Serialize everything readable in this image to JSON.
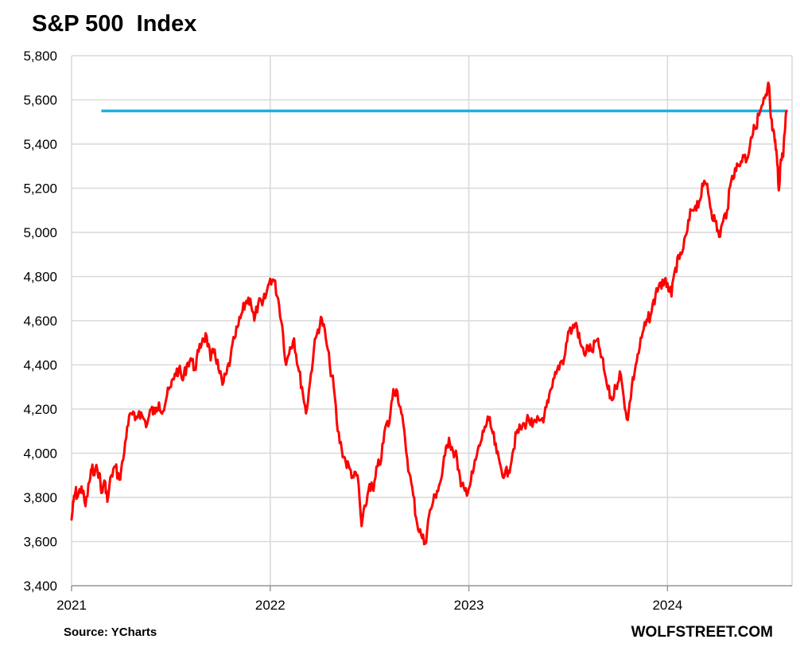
{
  "chart_data": {
    "type": "line",
    "title": "S&P 500  Index",
    "xlabel": "",
    "ylabel": "",
    "source": "Source: YCharts",
    "brand": "WOLFSTREET.COM",
    "xlim": [
      2021.0,
      2024.6
    ],
    "ylim": [
      3400,
      5800
    ],
    "y_ticks": [
      3400,
      3600,
      3800,
      4000,
      4200,
      4400,
      4600,
      4800,
      5000,
      5200,
      5400,
      5600,
      5800
    ],
    "y_tick_labels": [
      "3,400",
      "3,600",
      "3,800",
      "4,000",
      "4,200",
      "4,400",
      "4,600",
      "4,800",
      "5,000",
      "5,200",
      "5,400",
      "5,600",
      "5,800"
    ],
    "x_ticks": [
      2021,
      2022,
      2023,
      2024
    ],
    "x_tick_labels": [
      "2021",
      "2022",
      "2023",
      "2024"
    ],
    "grid": true,
    "legend": "none",
    "colors": {
      "series": "#ff0000",
      "reference": "#1fb0e0",
      "grid": "#d9d9d9"
    },
    "series": [
      {
        "x": [
          2021.0,
          2021.01,
          2021.02,
          2021.03,
          2021.05,
          2021.07,
          2021.09,
          2021.1,
          2021.12,
          2021.14,
          2021.15,
          2021.17,
          2021.18,
          2021.2,
          2021.22,
          2021.24,
          2021.26,
          2021.28,
          2021.3,
          2021.32,
          2021.34,
          2021.36,
          2021.38,
          2021.4,
          2021.42,
          2021.44,
          2021.46,
          2021.48,
          2021.5,
          2021.52,
          2021.54,
          2021.56,
          2021.58,
          2021.6,
          2021.62,
          2021.64,
          2021.66,
          2021.68,
          2021.7,
          2021.72,
          2021.74,
          2021.76,
          2021.78,
          2021.8,
          2021.82,
          2021.84,
          2021.86,
          2021.88,
          2021.9,
          2021.92,
          2021.94,
          2021.96,
          2021.98,
          2022.0,
          2022.02,
          2022.04,
          2022.06,
          2022.08,
          2022.1,
          2022.12,
          2022.14,
          2022.16,
          2022.18,
          2022.2,
          2022.22,
          2022.24,
          2022.26,
          2022.28,
          2022.3,
          2022.32,
          2022.34,
          2022.36,
          2022.38,
          2022.4,
          2022.42,
          2022.44,
          2022.46,
          2022.48,
          2022.5,
          2022.52,
          2022.54,
          2022.56,
          2022.58,
          2022.6,
          2022.62,
          2022.64,
          2022.66,
          2022.68,
          2022.7,
          2022.72,
          2022.74,
          2022.76,
          2022.78,
          2022.8,
          2022.82,
          2022.84,
          2022.86,
          2022.88,
          2022.9,
          2022.92,
          2022.94,
          2022.96,
          2022.98,
          2023.0,
          2023.02,
          2023.04,
          2023.06,
          2023.08,
          2023.1,
          2023.12,
          2023.14,
          2023.16,
          2023.18,
          2023.2,
          2023.22,
          2023.24,
          2023.26,
          2023.28,
          2023.3,
          2023.32,
          2023.34,
          2023.36,
          2023.38,
          2023.4,
          2023.42,
          2023.44,
          2023.46,
          2023.48,
          2023.5,
          2023.52,
          2023.54,
          2023.56,
          2023.58,
          2023.6,
          2023.62,
          2023.64,
          2023.66,
          2023.68,
          2023.7,
          2023.72,
          2023.74,
          2023.76,
          2023.78,
          2023.8,
          2023.82,
          2023.84,
          2023.86,
          2023.88,
          2023.9,
          2023.92,
          2023.94,
          2023.96,
          2023.98,
          2024.0,
          2024.02,
          2024.04,
          2024.06,
          2024.08,
          2024.1,
          2024.12,
          2024.14,
          2024.16,
          2024.18,
          2024.2,
          2024.22,
          2024.24,
          2024.26,
          2024.28,
          2024.3,
          2024.32,
          2024.34,
          2024.36,
          2024.38,
          2024.4,
          2024.42,
          2024.44,
          2024.46,
          2024.48,
          2024.5,
          2024.51,
          2024.52,
          2024.53,
          2024.54,
          2024.55,
          2024.56,
          2024.57,
          2024.58,
          2024.59,
          2024.6
        ],
        "values": [
          3700,
          3780,
          3830,
          3800,
          3850,
          3760,
          3870,
          3920,
          3930,
          3910,
          3820,
          3870,
          3780,
          3900,
          3940,
          3880,
          3970,
          4120,
          4180,
          4150,
          4190,
          4160,
          4130,
          4200,
          4180,
          4230,
          4190,
          4260,
          4300,
          4360,
          4380,
          4330,
          4400,
          4430,
          4380,
          4460,
          4520,
          4530,
          4420,
          4470,
          4380,
          4310,
          4360,
          4430,
          4520,
          4580,
          4640,
          4690,
          4700,
          4600,
          4680,
          4670,
          4720,
          4790,
          4780,
          4700,
          4580,
          4400,
          4480,
          4520,
          4390,
          4300,
          4180,
          4320,
          4470,
          4560,
          4610,
          4520,
          4400,
          4300,
          4100,
          4020,
          3960,
          3930,
          3890,
          3900,
          3670,
          3760,
          3860,
          3830,
          3940,
          3980,
          4120,
          4140,
          4290,
          4280,
          4180,
          4050,
          3910,
          3810,
          3680,
          3630,
          3590,
          3720,
          3780,
          3830,
          3880,
          3990,
          4070,
          4010,
          3980,
          3850,
          3830,
          3840,
          3910,
          3990,
          4050,
          4120,
          4150,
          4090,
          4000,
          3940,
          3900,
          3920,
          4000,
          4090,
          4110,
          4130,
          4160,
          4120,
          4140,
          4150,
          4170,
          4230,
          4300,
          4360,
          4410,
          4430,
          4550,
          4560,
          4590,
          4500,
          4450,
          4480,
          4460,
          4510,
          4470,
          4380,
          4290,
          4240,
          4300,
          4370,
          4250,
          4150,
          4300,
          4400,
          4480,
          4560,
          4600,
          4640,
          4720,
          4770,
          4760,
          4770,
          4710,
          4840,
          4880,
          4930,
          5010,
          5100,
          5120,
          5140,
          5210,
          5220,
          5100,
          5050,
          4980,
          5050,
          5100,
          5230,
          5290,
          5300,
          5350,
          5330,
          5430,
          5470,
          5530,
          5580,
          5620,
          5670,
          5520,
          5460,
          5410,
          5350,
          5190,
          5330,
          5340,
          5450,
          5550
        ]
      }
    ],
    "reference_line": {
      "y": 5550,
      "x_start": 2021.15,
      "x_end": 2024.6
    }
  }
}
